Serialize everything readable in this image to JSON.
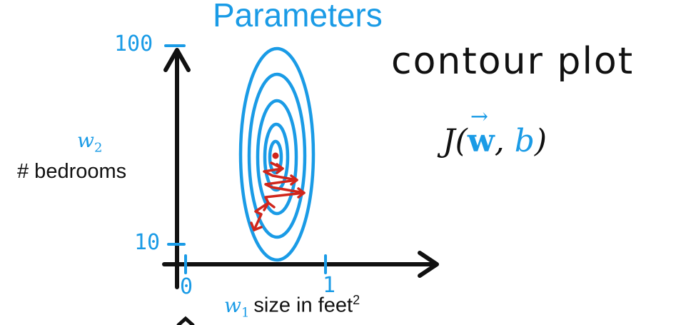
{
  "title": "Parameters",
  "handwritten_title": "contour plot",
  "formula": {
    "prefix": "J(",
    "w": "w",
    "sep": ", ",
    "b": "b",
    "suffix": ")"
  },
  "y_axis": {
    "symbol": "w",
    "subscript": "2",
    "label": "# bedrooms",
    "ticks": [
      "100",
      "10"
    ]
  },
  "x_axis": {
    "symbol": "w",
    "subscript": "1",
    "label": "size in feet",
    "superscript": "2",
    "ticks": [
      "0",
      "1"
    ]
  },
  "colors": {
    "contour": "#1a9be6",
    "axes": "#111111",
    "path": "#d0261c"
  },
  "contours": {
    "count": 5,
    "shape": "vertical ellipses"
  },
  "descent_path": {
    "description_label": ""
  }
}
